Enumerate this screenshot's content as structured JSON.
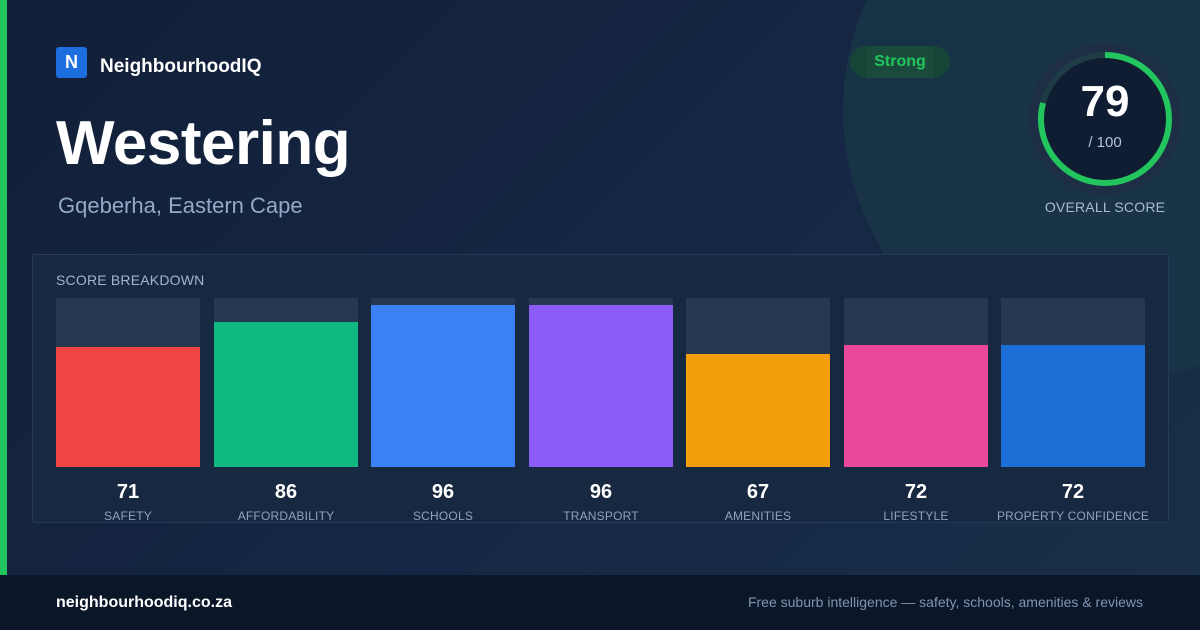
{
  "brand": {
    "logo_letter": "N",
    "name": "NeighbourhoodIQ",
    "color": "#1d6fe0"
  },
  "suburb": {
    "name": "Westering",
    "location": "Gqeberha, Eastern Cape"
  },
  "rating": {
    "label": "Strong",
    "color": "#22c55e"
  },
  "overall": {
    "score": "79",
    "max_label": "/ 100",
    "value": 79,
    "max": 100,
    "label": "OVERALL SCORE",
    "ring_color": "#22c55e"
  },
  "breakdown": {
    "title": "SCORE BREAKDOWN",
    "categories": [
      {
        "label": "SAFETY",
        "value": 71,
        "color": "#ef4444"
      },
      {
        "label": "AFFORDABILITY",
        "value": 86,
        "color": "#10b981"
      },
      {
        "label": "SCHOOLS",
        "value": 96,
        "color": "#3b82f6"
      },
      {
        "label": "TRANSPORT",
        "value": 96,
        "color": "#8b5cf6"
      },
      {
        "label": "AMENITIES",
        "value": 67,
        "color": "#f59e0b"
      },
      {
        "label": "LIFESTYLE",
        "value": 72,
        "color": "#ec4899"
      },
      {
        "label": "PROPERTY CONFIDENCE",
        "value": 72,
        "color": "#1d6fd8"
      }
    ]
  },
  "footer": {
    "url": "neighbourhoodiq.co.za",
    "tagline": "Free suburb intelligence — safety, schools, amenities & reviews"
  },
  "accent_color": "#22c55e"
}
